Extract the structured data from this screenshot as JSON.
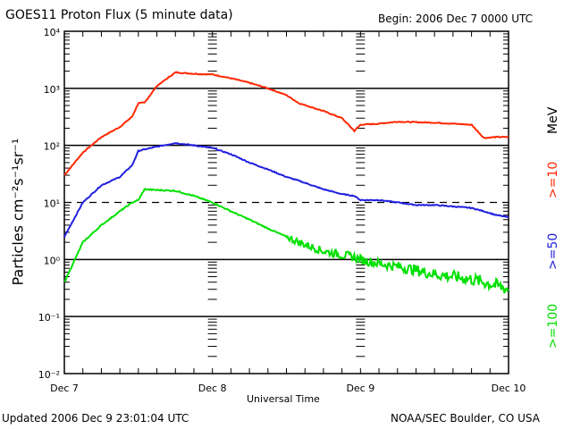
{
  "header": {
    "title": "GOES11 Proton Flux (5 minute data)",
    "begin": "Begin: 2006 Dec 7 0000 UTC"
  },
  "footer": {
    "updated": "Updated 2006 Dec  9 23:01:04 UTC",
    "credit": "NOAA/SEC Boulder, CO USA"
  },
  "chart_data": {
    "type": "line",
    "title": "GOES11 Proton Flux (5 minute data)",
    "xlabel": "Universal Time",
    "ylabel": "Particles cm⁻²s⁻¹sr⁻¹",
    "yscale": "log",
    "ylim": [
      0.01,
      10000
    ],
    "xlim_hours": [
      0,
      72
    ],
    "x_tick_labels": [
      "Dec 7",
      "Dec 8",
      "Dec 9",
      "Dec 10"
    ],
    "y_tick_labels": [
      "10⁻²",
      "10⁻¹",
      "10⁰",
      "10¹",
      "10²",
      "10³",
      "10⁴"
    ],
    "y_tick_values": [
      0.01,
      0.1,
      1,
      10,
      100,
      1000,
      10000
    ],
    "unit_label": "MeV",
    "x_hours": [
      0,
      3,
      6,
      9,
      11,
      12,
      13,
      15,
      18,
      21,
      24,
      27,
      30,
      33,
      36,
      38,
      42,
      45,
      47,
      48,
      51,
      54,
      57,
      60,
      63,
      66,
      68,
      70,
      72
    ],
    "series": [
      {
        "name": ">=10",
        "color": "#ff2800",
        "values": [
          30,
          75,
          140,
          210,
          320,
          550,
          560,
          1100,
          1900,
          1800,
          1750,
          1500,
          1250,
          1000,
          760,
          550,
          400,
          300,
          180,
          230,
          240,
          260,
          255,
          250,
          240,
          230,
          135,
          140,
          140
        ]
      },
      {
        "name": ">=50",
        "color": "#2020e0",
        "values": [
          2.5,
          10,
          20,
          28,
          45,
          80,
          85,
          95,
          110,
          100,
          90,
          70,
          50,
          38,
          28,
          24,
          17,
          14,
          13,
          11,
          11,
          10,
          9,
          9,
          8.5,
          8,
          7,
          6,
          5.5
        ]
      },
      {
        "name": ">=100",
        "color": "#00e000",
        "values": [
          0.4,
          2.0,
          4.0,
          7.0,
          10,
          11,
          17,
          16.5,
          16,
          13,
          10,
          7,
          5,
          3.5,
          2.5,
          2.0,
          1.4,
          1.2,
          1.1,
          1.0,
          0.85,
          0.75,
          0.65,
          0.55,
          0.5,
          0.45,
          0.4,
          0.35,
          0.3
        ]
      }
    ]
  }
}
